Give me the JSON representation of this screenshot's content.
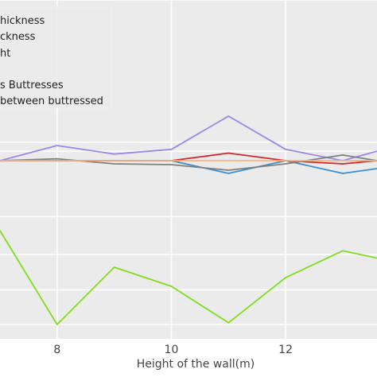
{
  "chart_data": {
    "type": "line",
    "xlabel": "Height of the wall(m)",
    "ylabel": "",
    "xlim": [
      7,
      13.6
    ],
    "ylim": [
      -1.0,
      1.0
    ],
    "x_ticks": [
      8,
      10,
      12
    ],
    "x_tick_labels": [
      "8",
      "10",
      "12"
    ],
    "y_ticks": [
      0.5,
      0.1,
      0.05,
      0,
      -0.3,
      -0.5,
      -0.7,
      -0.9
    ],
    "grid": true,
    "legend_position": "top-left",
    "background": "#ebebeb",
    "legend": [
      {
        "label": "hickness",
        "color": "#e8862c"
      },
      {
        "label": "ckness",
        "color": "#9b87e8"
      },
      {
        "label": "ht",
        "color": "#d62728"
      },
      {
        "label": "",
        "color": "#808080"
      },
      {
        "label": "s Buttresses",
        "color": "#3a8fd0"
      },
      {
        "label": "between buttressed",
        "color": "#7fdd1e"
      }
    ],
    "x": [
      7,
      8,
      9,
      10,
      11,
      12,
      13,
      13.6
    ],
    "series": [
      {
        "color": "#9b87e8",
        "values": [
          0,
          0.08,
          0.035,
          0.06,
          0.25,
          0.06,
          0.0,
          0.05
        ]
      },
      {
        "color": "#d62728",
        "values": [
          0,
          0.0,
          0.0,
          0.0,
          0.04,
          0.0,
          -0.02,
          0.0
        ]
      },
      {
        "color": "#3a8fd0",
        "values": [
          0,
          0.0,
          0.0,
          0.0,
          -0.08,
          0.0,
          -0.08,
          -0.05
        ]
      },
      {
        "color": "#808080",
        "values": [
          0,
          0.01,
          -0.02,
          -0.025,
          -0.06,
          -0.02,
          0.03,
          0.0
        ]
      },
      {
        "color": "#f4b183",
        "values": [
          0,
          0,
          0,
          0,
          0,
          0,
          0,
          0
        ]
      },
      {
        "color": "#7fdd1e",
        "values": [
          -0.37,
          -0.9,
          -0.57,
          -0.68,
          -0.89,
          -0.63,
          -0.48,
          -0.52
        ]
      }
    ]
  }
}
